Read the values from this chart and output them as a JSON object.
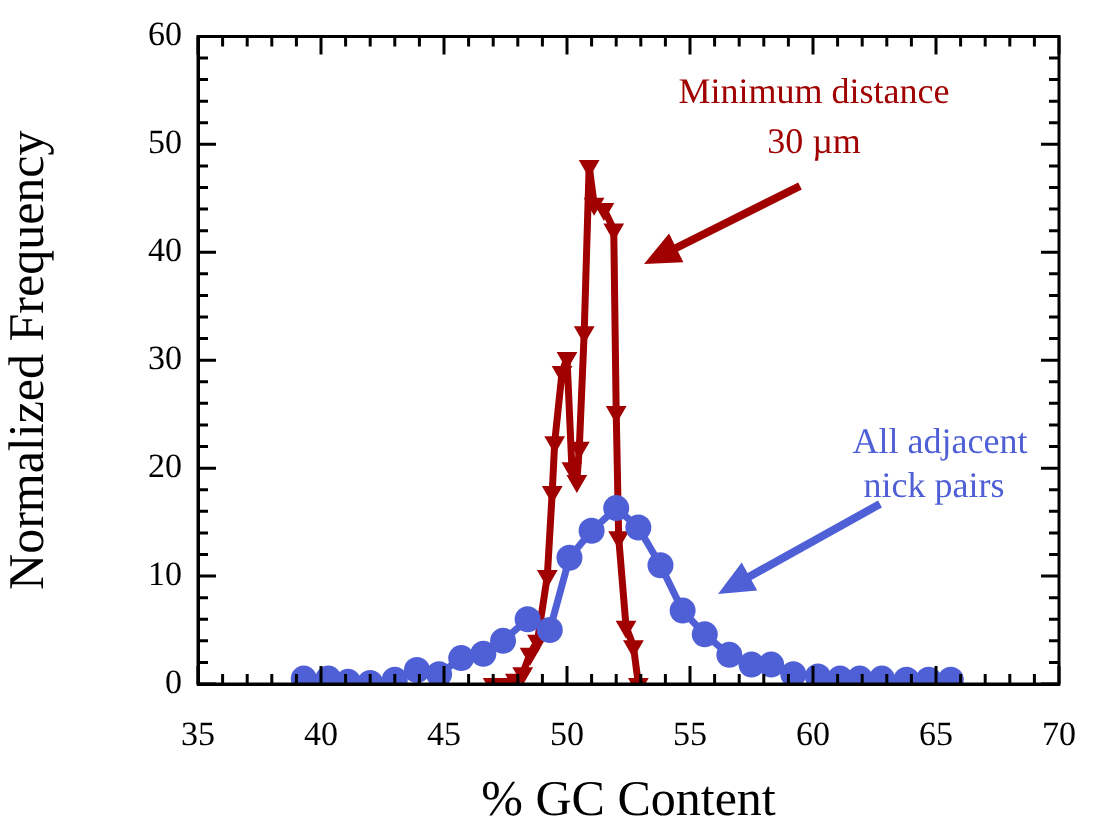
{
  "chart_data": {
    "type": "line",
    "xlabel": "% GC Content",
    "ylabel": "Normalized Frequency",
    "xlim": [
      35,
      70
    ],
    "ylim": [
      0,
      60
    ],
    "xticks": [
      35,
      {
        "value": 36,
        "label": null
      },
      {
        "value": 37,
        "label": null
      },
      {
        "value": 38,
        "label": null
      },
      {
        "value": 39,
        "label": null
      },
      40,
      {
        "value": 41,
        "label": null
      },
      {
        "value": 42,
        "label": null
      },
      {
        "value": 43,
        "label": null
      },
      {
        "value": 44,
        "label": null
      },
      45,
      {
        "value": 46,
        "label": null
      },
      {
        "value": 47,
        "label": null
      },
      {
        "value": 48,
        "label": null
      },
      {
        "value": 49,
        "label": null
      },
      50,
      {
        "value": 51,
        "label": null
      },
      {
        "value": 52,
        "label": null
      },
      {
        "value": 53,
        "label": null
      },
      {
        "value": 54,
        "label": null
      },
      55,
      {
        "value": 56,
        "label": null
      },
      {
        "value": 57,
        "label": null
      },
      {
        "value": 58,
        "label": null
      },
      {
        "value": 59,
        "label": null
      },
      60,
      {
        "value": 61,
        "label": null
      },
      {
        "value": 62,
        "label": null
      },
      {
        "value": 63,
        "label": null
      },
      {
        "value": 64,
        "label": null
      },
      65,
      {
        "value": 66,
        "label": null
      },
      {
        "value": 67,
        "label": null
      },
      {
        "value": 68,
        "label": null
      },
      {
        "value": 69,
        "label": null
      },
      70
    ],
    "yticks": [
      0,
      {
        "value": 2,
        "label": null
      },
      {
        "value": 4,
        "label": null
      },
      {
        "value": 6,
        "label": null
      },
      {
        "value": 8,
        "label": null
      },
      10,
      {
        "value": 12,
        "label": null
      },
      {
        "value": 14,
        "label": null
      },
      {
        "value": 16,
        "label": null
      },
      {
        "value": 18,
        "label": null
      },
      20,
      {
        "value": 22,
        "label": null
      },
      {
        "value": 24,
        "label": null
      },
      {
        "value": 26,
        "label": null
      },
      {
        "value": 28,
        "label": null
      },
      30,
      {
        "value": 32,
        "label": null
      },
      {
        "value": 34,
        "label": null
      },
      {
        "value": 36,
        "label": null
      },
      {
        "value": 38,
        "label": null
      },
      40,
      {
        "value": 42,
        "label": null
      },
      {
        "value": 44,
        "label": null
      },
      {
        "value": 46,
        "label": null
      },
      {
        "value": 48,
        "label": null
      },
      50,
      {
        "value": 52,
        "label": null
      },
      {
        "value": 54,
        "label": null
      },
      {
        "value": 56,
        "label": null
      },
      {
        "value": 58,
        "label": null
      },
      60
    ],
    "grid": false,
    "legend": false,
    "series": [
      {
        "type": "line",
        "marker": "circle",
        "color": "#4f5fd6",
        "x": [
          39.3,
          40.3,
          41.1,
          42.0,
          43.0,
          43.9,
          44.8,
          45.7,
          46.6,
          47.4,
          48.4,
          49.3,
          50.1,
          51.0,
          52.0,
          52.9,
          53.8,
          54.7,
          55.6,
          56.6,
          57.5,
          58.3,
          59.2,
          60.2,
          61.1,
          61.9,
          62.8,
          63.8,
          64.7,
          65.6
        ],
        "values": [
          0.5,
          0.5,
          0.2,
          0.1,
          0.4,
          1.3,
          0.9,
          2.4,
          2.8,
          4.0,
          6.0,
          5.0,
          11.7,
          14.2,
          16.3,
          14.5,
          11.0,
          6.8,
          4.6,
          2.7,
          1.8,
          1.8,
          0.9,
          0.7,
          0.5,
          0.5,
          0.5,
          0.4,
          0.4,
          0.4
        ]
      },
      {
        "type": "line",
        "marker": "triangle",
        "color": "#a00000",
        "x": [
          47.0,
          47.3,
          47.6,
          47.9,
          48.2,
          48.5,
          48.8,
          49.2,
          49.4,
          49.5,
          49.8,
          50.0,
          50.2,
          50.4,
          50.5,
          50.7,
          50.9,
          51.1,
          51.5,
          51.9,
          52.0,
          52.1,
          52.4,
          52.7,
          52.9
        ],
        "values": [
          0,
          0,
          0,
          0.4,
          1.0,
          2.8,
          4.0,
          10.0,
          17.8,
          22.4,
          28.9,
          30.2,
          20.0,
          18.8,
          21.9,
          32.6,
          48.0,
          44.5,
          44.0,
          42.1,
          25.2,
          13.6,
          5.3,
          3.5,
          0
        ]
      }
    ],
    "annotations": [
      "Minimum distance\n30 µm",
      "All adjacent\nnick pairs"
    ]
  }
}
